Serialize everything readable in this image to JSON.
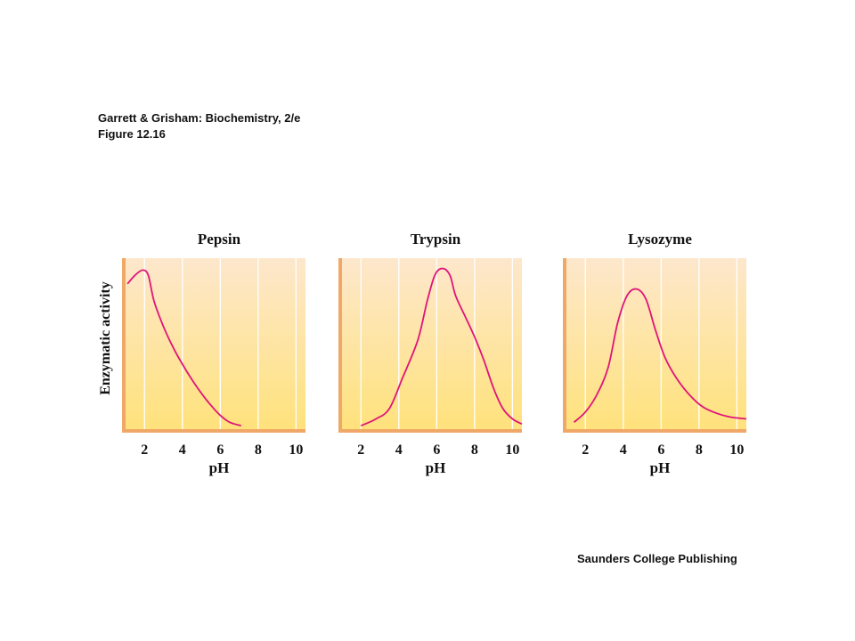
{
  "header": {
    "book": "Garrett & Grisham: Biochemistry, 2/e",
    "figure": "Figure 12.16"
  },
  "publisher": "Saunders College Publishing",
  "colors": {
    "curve": "#e0147a",
    "axis": "#f0a868",
    "grid": "#ffffff",
    "bg_top": "#fde7cc",
    "bg_bottom": "#ffe27a",
    "text": "#111111"
  },
  "chart_data": [
    {
      "type": "line",
      "title": "Pepsin",
      "xlabel": "pH",
      "ylabel": "Enzymatic activity",
      "xticks": [
        2,
        4,
        6,
        8,
        10
      ],
      "xlim": [
        1,
        10.5
      ],
      "ylim": [
        0,
        1
      ],
      "grid": true,
      "series": [
        {
          "x": [
            1.1,
            1.5,
            1.9,
            2.2,
            2.5,
            3.0,
            3.5,
            4.0,
            4.5,
            5.0,
            5.5,
            6.0,
            6.5,
            7.1
          ],
          "y": [
            0.85,
            0.9,
            0.93,
            0.9,
            0.75,
            0.6,
            0.48,
            0.38,
            0.29,
            0.21,
            0.14,
            0.08,
            0.04,
            0.02
          ]
        }
      ]
    },
    {
      "type": "line",
      "title": "Trypsin",
      "xlabel": "pH",
      "ylabel": "",
      "xticks": [
        2,
        4,
        6,
        8,
        10
      ],
      "xlim": [
        1,
        10.5
      ],
      "ylim": [
        0,
        1
      ],
      "grid": true,
      "series": [
        {
          "x": [
            2.0,
            2.8,
            3.5,
            4.2,
            5.0,
            5.5,
            5.9,
            6.3,
            6.7,
            7.0,
            7.5,
            8.0,
            8.5,
            9.0,
            9.5,
            10.0,
            10.5
          ],
          "y": [
            0.02,
            0.06,
            0.12,
            0.3,
            0.52,
            0.75,
            0.9,
            0.94,
            0.9,
            0.78,
            0.66,
            0.54,
            0.4,
            0.24,
            0.12,
            0.06,
            0.03
          ]
        }
      ]
    },
    {
      "type": "line",
      "title": "Lysozyme",
      "xlabel": "pH",
      "ylabel": "",
      "xticks": [
        2,
        4,
        6,
        8,
        10
      ],
      "xlim": [
        1,
        10.5
      ],
      "ylim": [
        0,
        1
      ],
      "grid": true,
      "series": [
        {
          "x": [
            1.4,
            2.0,
            2.6,
            3.2,
            3.7,
            4.2,
            4.7,
            5.2,
            5.7,
            6.2,
            6.8,
            7.5,
            8.2,
            9.0,
            9.7,
            10.5
          ],
          "y": [
            0.04,
            0.1,
            0.2,
            0.36,
            0.62,
            0.78,
            0.82,
            0.76,
            0.58,
            0.42,
            0.3,
            0.2,
            0.13,
            0.09,
            0.07,
            0.06
          ]
        }
      ]
    }
  ]
}
